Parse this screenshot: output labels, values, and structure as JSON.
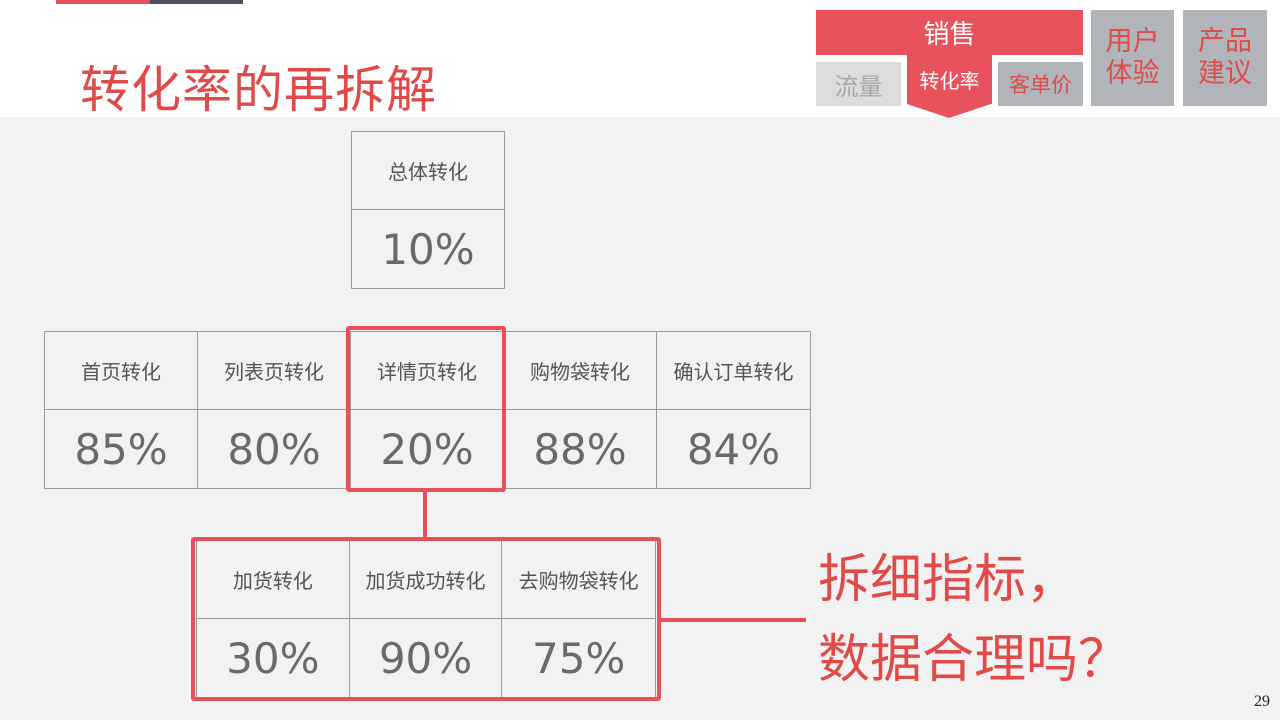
{
  "title": "转化率的再拆解",
  "nav": {
    "sales": "销售",
    "traffic": "流量",
    "conversion": "转化率",
    "aov": "客单价",
    "ux": "用户体验",
    "advice": "产品建议"
  },
  "top": {
    "label": "总体转化",
    "value": "10%"
  },
  "middle": [
    {
      "label": "首页转化",
      "value": "85%"
    },
    {
      "label": "列表页转化",
      "value": "80%"
    },
    {
      "label": "详情页转化",
      "value": "20%"
    },
    {
      "label": "购物袋转化",
      "value": "88%"
    },
    {
      "label": "确认订单转化",
      "value": "84%"
    }
  ],
  "bottom": [
    {
      "label": "加货转化",
      "value": "30%"
    },
    {
      "label": "加货成功转化",
      "value": "90%"
    },
    {
      "label": "去购物袋转化",
      "value": "75%"
    }
  ],
  "note": {
    "line1": "拆细指标，",
    "line2": "数据合理吗？"
  },
  "page_number": "29",
  "colors": {
    "accent": "#e8525d",
    "title": "#e04a48",
    "nav_gray": "#b1b4b9",
    "background": "#f2f2f2"
  }
}
